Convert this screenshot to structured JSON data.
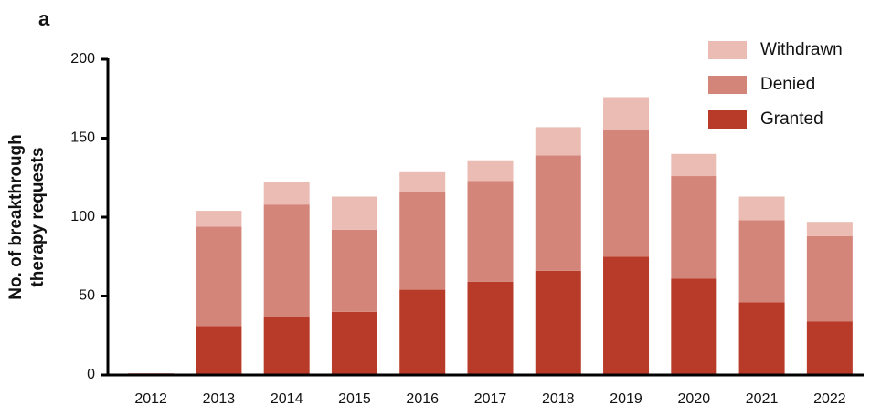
{
  "chart_data": {
    "type": "stacked_bar",
    "panel_label": "a",
    "ylabel": [
      "No. of breakthrough",
      "therapy requests"
    ],
    "categories": [
      "2012",
      "2013",
      "2014",
      "2015",
      "2016",
      "2017",
      "2018",
      "2019",
      "2020",
      "2021",
      "2022"
    ],
    "series": [
      {
        "name": "Granted",
        "color": "#b83a28",
        "values": [
          1,
          31,
          37,
          40,
          54,
          59,
          66,
          75,
          61,
          46,
          34
        ]
      },
      {
        "name": "Denied",
        "color": "#d4857a",
        "values": [
          0,
          63,
          71,
          52,
          62,
          64,
          73,
          80,
          65,
          52,
          54
        ]
      },
      {
        "name": "Withdrawn",
        "color": "#ebbcb4",
        "values": [
          0,
          10,
          14,
          21,
          13,
          13,
          18,
          21,
          14,
          15,
          9
        ]
      }
    ],
    "ylim": [
      0,
      200
    ],
    "yticks": [
      0,
      50,
      100,
      150,
      200
    ],
    "legend": "upper right"
  }
}
